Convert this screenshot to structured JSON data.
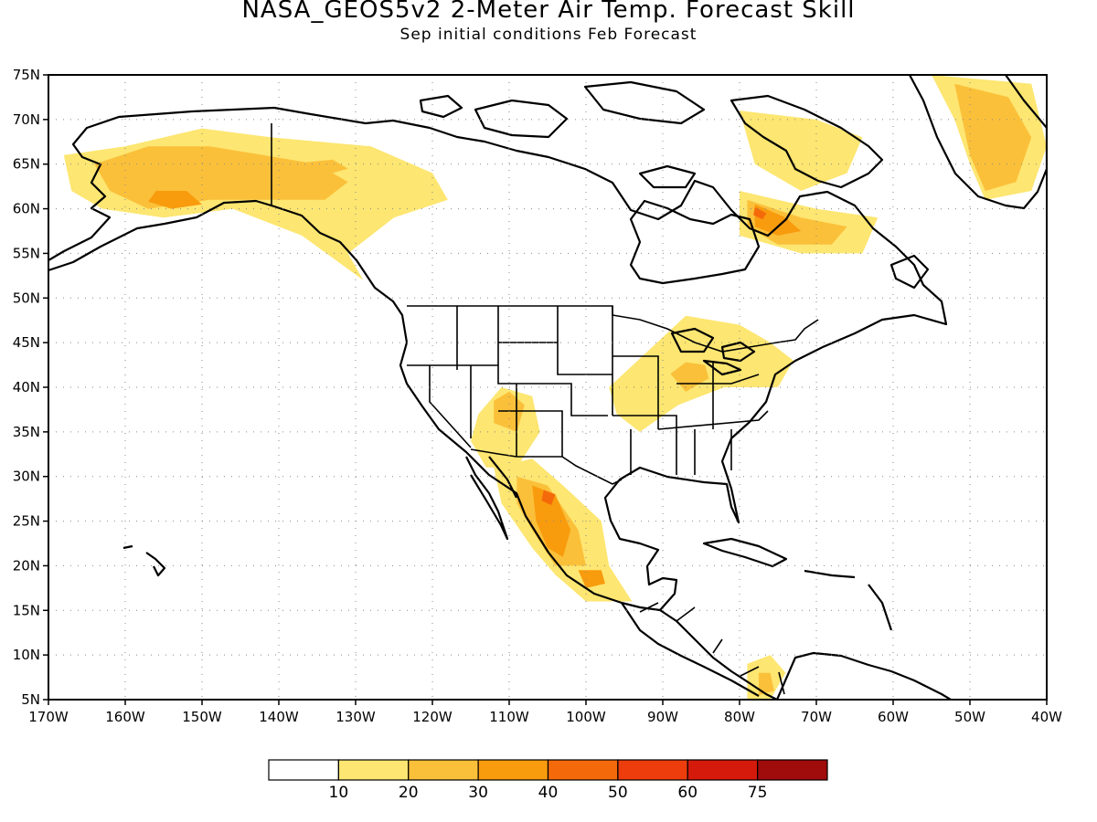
{
  "title": "NASA_GEOS5v2 2-Meter Air Temp. Forecast Skill",
  "subtitle": "Sep initial conditions  Feb Forecast",
  "map": {
    "lon_range": [
      -170,
      -40
    ],
    "lat_range": [
      5,
      75
    ],
    "lon_ticks": [
      {
        "lon": -170,
        "label": "170W"
      },
      {
        "lon": -160,
        "label": "160W"
      },
      {
        "lon": -150,
        "label": "150W"
      },
      {
        "lon": -140,
        "label": "140W"
      },
      {
        "lon": -130,
        "label": "130W"
      },
      {
        "lon": -120,
        "label": "120W"
      },
      {
        "lon": -110,
        "label": "110W"
      },
      {
        "lon": -100,
        "label": "100W"
      },
      {
        "lon": -90,
        "label": "90W"
      },
      {
        "lon": -80,
        "label": "80W"
      },
      {
        "lon": -70,
        "label": "70W"
      },
      {
        "lon": -60,
        "label": "60W"
      },
      {
        "lon": -50,
        "label": "50W"
      },
      {
        "lon": -40,
        "label": "40W"
      }
    ],
    "lat_ticks": [
      {
        "lat": 75,
        "label": "75N"
      },
      {
        "lat": 70,
        "label": "70N"
      },
      {
        "lat": 65,
        "label": "65N"
      },
      {
        "lat": 60,
        "label": "60N"
      },
      {
        "lat": 55,
        "label": "55N"
      },
      {
        "lat": 50,
        "label": "50N"
      },
      {
        "lat": 45,
        "label": "45N"
      },
      {
        "lat": 40,
        "label": "40N"
      },
      {
        "lat": 35,
        "label": "35N"
      },
      {
        "lat": 30,
        "label": "30N"
      },
      {
        "lat": 25,
        "label": "25N"
      },
      {
        "lat": 20,
        "label": "20N"
      },
      {
        "lat": 15,
        "label": "15N"
      },
      {
        "lat": 10,
        "label": "10N"
      },
      {
        "lat": 5,
        "label": "5N"
      }
    ],
    "gridlines": "dotted",
    "skill_regions": [
      {
        "name": "Alaska",
        "level": 10,
        "points": [
          [
            -168,
            66
          ],
          [
            -160,
            67
          ],
          [
            -150,
            69
          ],
          [
            -141,
            68
          ],
          [
            -128,
            67
          ],
          [
            -120,
            64
          ],
          [
            -118,
            61
          ],
          [
            -125,
            59
          ],
          [
            -131,
            55
          ],
          [
            -129,
            52
          ],
          [
            -137,
            57
          ],
          [
            -146,
            60
          ],
          [
            -155,
            59
          ],
          [
            -163,
            60
          ],
          [
            -167,
            62
          ]
        ]
      },
      {
        "name": "Alaska",
        "level": 20,
        "points": [
          [
            -164,
            65
          ],
          [
            -157,
            67
          ],
          [
            -149,
            67
          ],
          [
            -142,
            66
          ],
          [
            -135,
            65
          ],
          [
            -131,
            63
          ],
          [
            -134,
            61
          ],
          [
            -141,
            61
          ],
          [
            -149,
            61
          ],
          [
            -157,
            60
          ],
          [
            -162,
            62
          ]
        ]
      },
      {
        "name": "Alaska",
        "level": 30,
        "points": [
          [
            -156,
            62
          ],
          [
            -152,
            62
          ],
          [
            -150,
            60.5
          ],
          [
            -154,
            60
          ],
          [
            -157,
            60.8
          ]
        ]
      },
      {
        "name": "Yukon",
        "level": 20,
        "points": [
          [
            -139,
            65
          ],
          [
            -133,
            65.5
          ],
          [
            -131,
            64.5
          ],
          [
            -135,
            63.5
          ],
          [
            -139,
            63.8
          ]
        ]
      },
      {
        "name": "Baffin",
        "level": 10,
        "points": [
          [
            -80,
            71
          ],
          [
            -70,
            70
          ],
          [
            -64,
            68
          ],
          [
            -66,
            64
          ],
          [
            -72,
            62
          ],
          [
            -78,
            65
          ]
        ]
      },
      {
        "name": "Quebec",
        "level": 10,
        "points": [
          [
            -80,
            62
          ],
          [
            -70,
            60
          ],
          [
            -62,
            59
          ],
          [
            -64,
            55
          ],
          [
            -72,
            55
          ],
          [
            -80,
            57
          ]
        ]
      },
      {
        "name": "Quebec",
        "level": 20,
        "points": [
          [
            -79,
            61
          ],
          [
            -72,
            59
          ],
          [
            -66,
            58
          ],
          [
            -68,
            56
          ],
          [
            -75,
            56
          ],
          [
            -79,
            58
          ]
        ]
      },
      {
        "name": "Quebec",
        "level": 30,
        "points": [
          [
            -78,
            60.5
          ],
          [
            -74,
            59
          ],
          [
            -72,
            57.5
          ],
          [
            -75,
            57
          ],
          [
            -78,
            58
          ]
        ]
      },
      {
        "name": "Quebec",
        "level": 40,
        "points": [
          [
            -78,
            60.2
          ],
          [
            -76.5,
            59.5
          ],
          [
            -77,
            58.8
          ],
          [
            -78.2,
            59.3
          ]
        ]
      },
      {
        "name": "Greenland",
        "level": 10,
        "points": [
          [
            -55,
            75
          ],
          [
            -42,
            74
          ],
          [
            -40,
            67
          ],
          [
            -42,
            62
          ],
          [
            -48,
            61
          ],
          [
            -50,
            65
          ],
          [
            -52,
            70
          ]
        ]
      },
      {
        "name": "Greenland",
        "level": 20,
        "points": [
          [
            -52,
            74
          ],
          [
            -45,
            72.5
          ],
          [
            -42,
            68
          ],
          [
            -44,
            63
          ],
          [
            -48,
            62
          ],
          [
            -50,
            66
          ],
          [
            -51,
            70
          ]
        ]
      },
      {
        "name": "Great Lakes",
        "level": 10,
        "points": [
          [
            -97,
            40
          ],
          [
            -92,
            44
          ],
          [
            -87,
            48
          ],
          [
            -80,
            47
          ],
          [
            -76,
            45
          ],
          [
            -73,
            43
          ],
          [
            -75,
            40
          ],
          [
            -82,
            40
          ],
          [
            -88,
            38
          ],
          [
            -93,
            35
          ],
          [
            -96,
            37
          ]
        ]
      },
      {
        "name": "Great Lakes",
        "level": 20,
        "points": [
          [
            -89,
            41.5
          ],
          [
            -87,
            42.8
          ],
          [
            -84.5,
            42.5
          ],
          [
            -84,
            41
          ],
          [
            -87,
            39.5
          ]
        ]
      },
      {
        "name": "Rockies",
        "level": 10,
        "points": [
          [
            -114,
            37
          ],
          [
            -111,
            40
          ],
          [
            -107,
            39
          ],
          [
            -106,
            35
          ],
          [
            -109,
            31
          ],
          [
            -113,
            31
          ],
          [
            -115,
            34
          ]
        ]
      },
      {
        "name": "Rockies",
        "level": 20,
        "points": [
          [
            -112,
            38.5
          ],
          [
            -110,
            39.5
          ],
          [
            -108,
            38
          ],
          [
            -109,
            35
          ],
          [
            -112,
            36
          ]
        ]
      },
      {
        "name": "Mexico",
        "level": 10,
        "points": [
          [
            -112,
            31
          ],
          [
            -107,
            32
          ],
          [
            -103,
            29
          ],
          [
            -98,
            25
          ],
          [
            -97,
            20
          ],
          [
            -94,
            16
          ],
          [
            -100,
            16
          ],
          [
            -104,
            19
          ],
          [
            -107,
            22
          ],
          [
            -111,
            27
          ]
        ]
      },
      {
        "name": "Mexico",
        "level": 20,
        "points": [
          [
            -109,
            30
          ],
          [
            -105,
            29
          ],
          [
            -101,
            24
          ],
          [
            -100,
            20
          ],
          [
            -104,
            20
          ],
          [
            -107,
            24
          ],
          [
            -109,
            27
          ]
        ]
      },
      {
        "name": "Mexico",
        "level": 30,
        "points": [
          [
            -107,
            29
          ],
          [
            -104,
            28
          ],
          [
            -102,
            24
          ],
          [
            -103,
            21
          ],
          [
            -105,
            22
          ],
          [
            -106.5,
            25
          ]
        ]
      },
      {
        "name": "Mexico",
        "level": 40,
        "points": [
          [
            -105.5,
            28.5
          ],
          [
            -104,
            28
          ],
          [
            -104.5,
            26.8
          ],
          [
            -105.8,
            27.3
          ]
        ]
      },
      {
        "name": "South Mexico",
        "level": 30,
        "points": [
          [
            -101,
            19.5
          ],
          [
            -98,
            19.5
          ],
          [
            -97.5,
            18
          ],
          [
            -100,
            17.5
          ]
        ]
      },
      {
        "name": "Colombia",
        "level": 10,
        "points": [
          [
            -79,
            9
          ],
          [
            -76,
            10
          ],
          [
            -74,
            8
          ],
          [
            -76,
            5
          ],
          [
            -79,
            5
          ]
        ]
      },
      {
        "name": "Colombia",
        "level": 20,
        "points": [
          [
            -77.5,
            8
          ],
          [
            -76,
            8
          ],
          [
            -75.5,
            6
          ],
          [
            -77.5,
            5.5
          ]
        ]
      }
    ]
  },
  "legend": {
    "levels": [
      10,
      20,
      30,
      40,
      50,
      60,
      75
    ],
    "labels": [
      "10",
      "20",
      "30",
      "40",
      "50",
      "60",
      "75"
    ],
    "colors": [
      "#ffffff",
      "#fde671",
      "#fbc03a",
      "#f89b0d",
      "#f46a0a",
      "#ed3d0c",
      "#d51a0b",
      "#a00b0b"
    ]
  }
}
